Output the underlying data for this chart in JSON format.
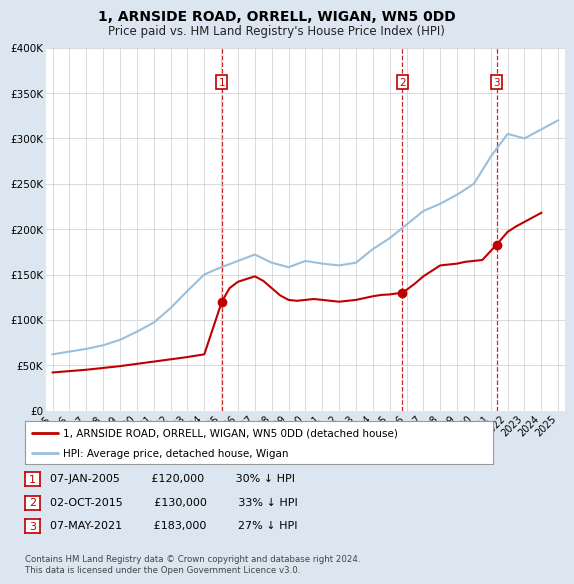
{
  "title": "1, ARNSIDE ROAD, ORRELL, WIGAN, WN5 0DD",
  "subtitle": "Price paid vs. HM Land Registry's House Price Index (HPI)",
  "hpi_years": [
    1995,
    1995.5,
    1996,
    1996.5,
    1997,
    1997.5,
    1998,
    1998.5,
    1999,
    1999.5,
    2000,
    2000.5,
    2001,
    2001.5,
    2002,
    2002.5,
    2003,
    2003.5,
    2004,
    2004.5,
    2005,
    2005.5,
    2006,
    2006.5,
    2007,
    2007.5,
    2008,
    2008.5,
    2009,
    2009.5,
    2010,
    2010.5,
    2011,
    2011.5,
    2012,
    2012.5,
    2013,
    2013.5,
    2014,
    2014.5,
    2015,
    2015.5,
    2016,
    2016.5,
    2017,
    2017.5,
    2018,
    2018.5,
    2019,
    2019.5,
    2020,
    2020.5,
    2021,
    2021.5,
    2022,
    2022.5,
    2023,
    2023.5,
    2024,
    2024.5,
    2025
  ],
  "hpi_values": [
    62000,
    63500,
    65000,
    66500,
    68000,
    70000,
    72000,
    75000,
    78000,
    82500,
    87000,
    92000,
    97000,
    105000,
    113000,
    122500,
    132000,
    141000,
    150000,
    154000,
    158000,
    161500,
    165000,
    168500,
    172000,
    167500,
    163000,
    160500,
    158000,
    161500,
    165000,
    163500,
    162000,
    161000,
    160000,
    161500,
    163000,
    170500,
    178000,
    184000,
    190000,
    197500,
    205000,
    212500,
    220000,
    224000,
    228000,
    233000,
    238000,
    244000,
    250000,
    265000,
    280000,
    292500,
    305000,
    302500,
    300000,
    305000,
    310000,
    315000,
    320000
  ],
  "hpi_color": "#9abfdc",
  "price_paid_years": [
    1995.0,
    1996.0,
    1997.0,
    1998.0,
    1999.0,
    2000.0,
    2001.0,
    2002.0,
    2003.0,
    2004.0,
    2005.04,
    2005.5,
    2006.0,
    2007.0,
    2007.5,
    2008.0,
    2008.5,
    2009.0,
    2009.5,
    2010.0,
    2010.5,
    2011.0,
    2011.5,
    2012.0,
    2012.5,
    2013.0,
    2013.5,
    2014.0,
    2014.5,
    2015.0,
    2015.75,
    2016.0,
    2016.5,
    2017.0,
    2017.5,
    2018.0,
    2018.5,
    2019.0,
    2019.5,
    2020.0,
    2020.5,
    2021.35,
    2022.0,
    2022.5,
    2023.0,
    2023.5,
    2024.0
  ],
  "price_paid_values": [
    42000,
    43500,
    45000,
    47000,
    49000,
    51500,
    54000,
    56500,
    59000,
    62000,
    120000,
    135000,
    142000,
    148000,
    143000,
    135000,
    127000,
    122000,
    121000,
    122000,
    123000,
    122000,
    121000,
    120000,
    121000,
    122000,
    124000,
    126000,
    127500,
    128000,
    130000,
    133000,
    140000,
    148000,
    154000,
    160000,
    161000,
    162000,
    164000,
    165000,
    166000,
    183000,
    197000,
    203000,
    208000,
    213000,
    218000
  ],
  "price_color": "#c00000",
  "sales": [
    {
      "num": 1,
      "year": 2005.04,
      "price": 120000,
      "label": "07-JAN-2005",
      "price_str": "£120,000",
      "pct": "30%",
      "x_line": 2005.04
    },
    {
      "num": 2,
      "year": 2015.75,
      "price": 130000,
      "label": "02-OCT-2015",
      "price_str": "£130,000",
      "pct": "33%",
      "x_line": 2015.75
    },
    {
      "num": 3,
      "year": 2021.35,
      "price": 183000,
      "label": "07-MAY-2021",
      "price_str": "£183,000",
      "pct": "27%",
      "x_line": 2021.35
    }
  ],
  "ylim": [
    0,
    400000
  ],
  "xlim": [
    1994.6,
    2025.4
  ],
  "yticks": [
    0,
    50000,
    100000,
    150000,
    200000,
    250000,
    300000,
    350000,
    400000
  ],
  "ytick_labels": [
    "£0",
    "£50K",
    "£100K",
    "£150K",
    "£200K",
    "£250K",
    "£300K",
    "£350K",
    "£400K"
  ],
  "xticks": [
    1995,
    1996,
    1997,
    1998,
    1999,
    2000,
    2001,
    2002,
    2003,
    2004,
    2005,
    2006,
    2007,
    2008,
    2009,
    2010,
    2011,
    2012,
    2013,
    2014,
    2015,
    2016,
    2017,
    2018,
    2019,
    2020,
    2021,
    2022,
    2023,
    2024,
    2025
  ],
  "legend_line1": "1, ARNSIDE ROAD, ORRELL, WIGAN, WN5 0DD (detached house)",
  "legend_line2": "HPI: Average price, detached house, Wigan",
  "footer": "Contains HM Land Registry data © Crown copyright and database right 2024.\nThis data is licensed under the Open Government Licence v3.0.",
  "background_color": "#dce6f1",
  "plot_bg": "#ffffff",
  "grid_color": "#cccccc"
}
